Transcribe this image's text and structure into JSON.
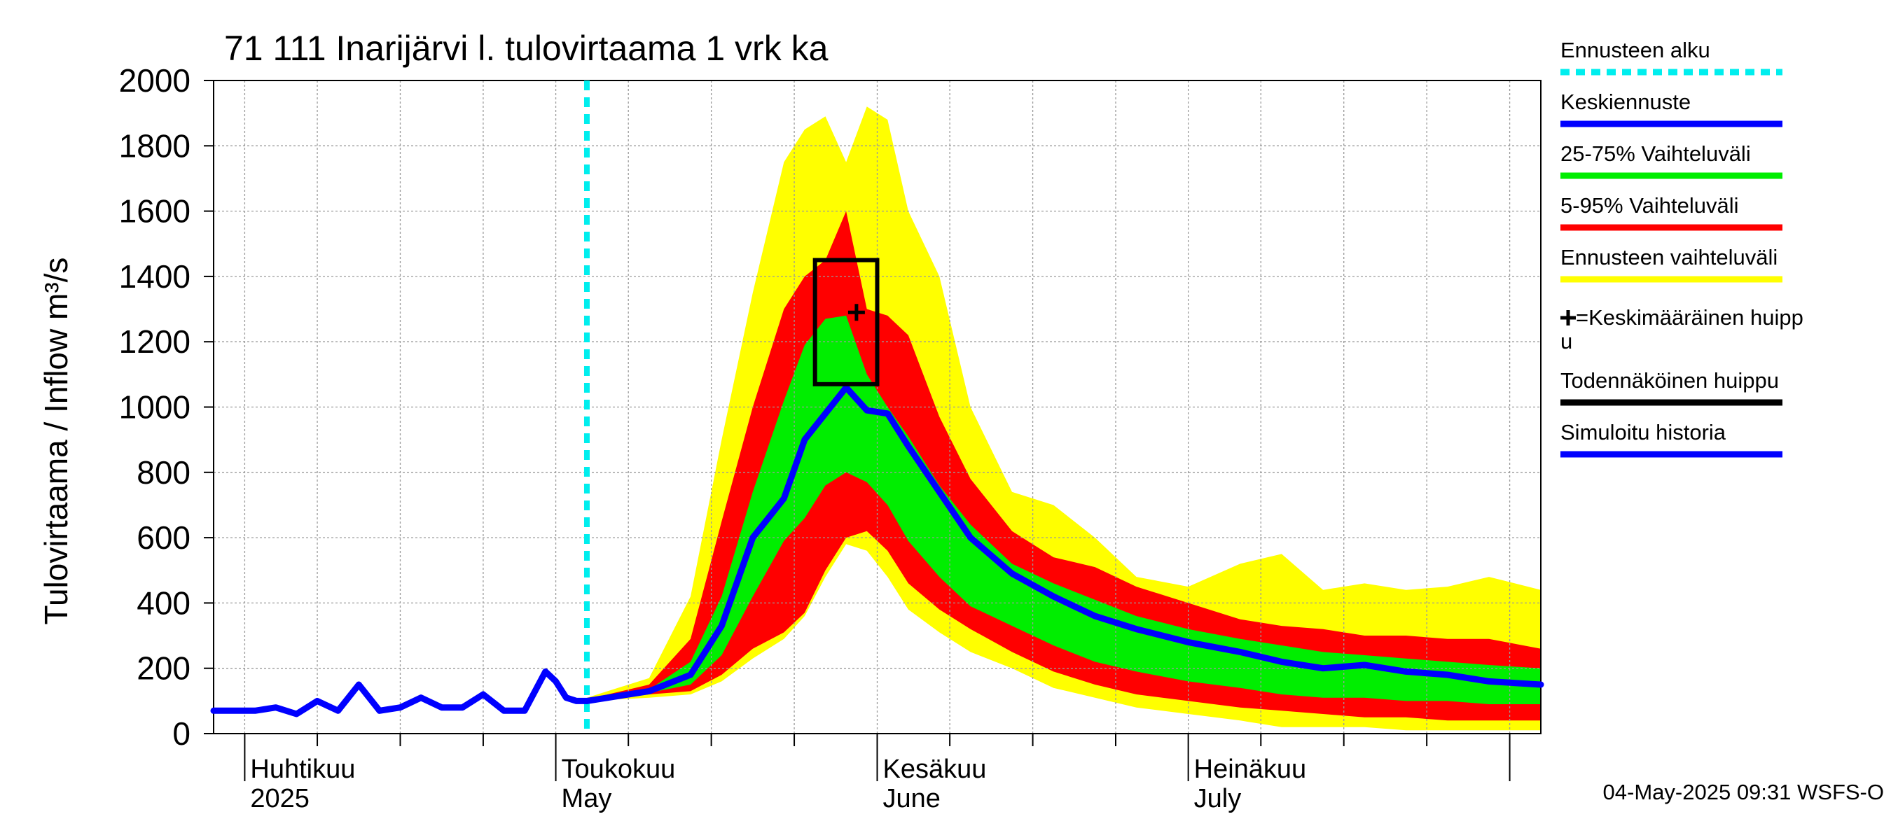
{
  "chart_data": {
    "type": "area",
    "title": "71 111 Inarijärvi l. tulovirtaama 1 vrk ka",
    "ylabel": "Tulovirtaama / Inflow    m³/s",
    "ylim": [
      0,
      2000
    ],
    "yticks": [
      0,
      200,
      400,
      600,
      800,
      1000,
      1200,
      1400,
      1600,
      1800,
      2000
    ],
    "xlim": [
      "2025-03-29",
      "2025-08-04"
    ],
    "month_labels": [
      {
        "date": "2025-04-01",
        "fi": "Huhtikuu",
        "en": "2025"
      },
      {
        "date": "2025-05-01",
        "fi": "Toukokuu",
        "en": "May"
      },
      {
        "date": "2025-06-01",
        "fi": "Kesäkuu",
        "en": "June"
      },
      {
        "date": "2025-07-01",
        "fi": "Heinäkuu",
        "en": "July"
      }
    ],
    "grid": true,
    "forecast_start": "2025-05-04",
    "series": [
      {
        "name": "Ennusteen vaihteluväli",
        "color": "#ffff00",
        "x": [
          "2025-05-04",
          "2025-05-10",
          "2025-05-14",
          "2025-05-17",
          "2025-05-20",
          "2025-05-23",
          "2025-05-25",
          "2025-05-27",
          "2025-05-29",
          "2025-05-31",
          "2025-06-02",
          "2025-06-04",
          "2025-06-07",
          "2025-06-10",
          "2025-06-14",
          "2025-06-18",
          "2025-06-22",
          "2025-06-26",
          "2025-07-01",
          "2025-07-06",
          "2025-07-10",
          "2025-07-14",
          "2025-07-18",
          "2025-07-22",
          "2025-07-26",
          "2025-07-30",
          "2025-08-04"
        ],
        "upper": [
          110,
          170,
          420,
          900,
          1350,
          1750,
          1850,
          1890,
          1750,
          1920,
          1880,
          1600,
          1400,
          1000,
          740,
          700,
          600,
          480,
          450,
          520,
          550,
          440,
          460,
          440,
          450,
          480,
          440
        ],
        "lower": [
          100,
          110,
          120,
          160,
          230,
          290,
          360,
          480,
          580,
          560,
          480,
          380,
          310,
          250,
          200,
          140,
          110,
          80,
          60,
          40,
          20,
          20,
          20,
          10,
          10,
          10,
          10
        ]
      },
      {
        "name": "5-95% Vaihteluväli",
        "color": "#ff0000",
        "x": [
          "2025-05-04",
          "2025-05-10",
          "2025-05-14",
          "2025-05-17",
          "2025-05-20",
          "2025-05-23",
          "2025-05-25",
          "2025-05-27",
          "2025-05-29",
          "2025-05-31",
          "2025-06-02",
          "2025-06-04",
          "2025-06-07",
          "2025-06-10",
          "2025-06-14",
          "2025-06-18",
          "2025-06-22",
          "2025-06-26",
          "2025-07-01",
          "2025-07-06",
          "2025-07-10",
          "2025-07-14",
          "2025-07-18",
          "2025-07-22",
          "2025-07-26",
          "2025-07-30",
          "2025-08-04"
        ],
        "upper": [
          105,
          150,
          290,
          650,
          1000,
          1300,
          1400,
          1450,
          1600,
          1300,
          1280,
          1220,
          970,
          780,
          620,
          540,
          510,
          450,
          400,
          350,
          330,
          320,
          300,
          300,
          290,
          290,
          260
        ],
        "lower": [
          100,
          120,
          130,
          180,
          260,
          310,
          370,
          500,
          600,
          620,
          560,
          460,
          380,
          320,
          250,
          190,
          150,
          120,
          100,
          80,
          70,
          60,
          50,
          50,
          40,
          40,
          40
        ]
      },
      {
        "name": "25-75% Vaihteluväli",
        "color": "#00ee00",
        "x": [
          "2025-05-04",
          "2025-05-10",
          "2025-05-14",
          "2025-05-17",
          "2025-05-20",
          "2025-05-23",
          "2025-05-25",
          "2025-05-27",
          "2025-05-29",
          "2025-05-31",
          "2025-06-02",
          "2025-06-04",
          "2025-06-07",
          "2025-06-10",
          "2025-06-14",
          "2025-06-18",
          "2025-06-22",
          "2025-06-26",
          "2025-07-01",
          "2025-07-06",
          "2025-07-10",
          "2025-07-14",
          "2025-07-18",
          "2025-07-22",
          "2025-07-26",
          "2025-07-30",
          "2025-08-04"
        ],
        "upper": [
          103,
          135,
          220,
          420,
          740,
          1020,
          1190,
          1270,
          1280,
          1100,
          1000,
          910,
          760,
          640,
          520,
          460,
          410,
          360,
          320,
          290,
          270,
          250,
          240,
          230,
          220,
          210,
          200
        ],
        "lower": [
          100,
          125,
          150,
          240,
          420,
          590,
          660,
          760,
          800,
          770,
          700,
          590,
          480,
          390,
          330,
          270,
          220,
          190,
          160,
          140,
          120,
          110,
          110,
          100,
          100,
          90,
          90
        ]
      },
      {
        "name": "Keskiennuste",
        "color": "#0000ff",
        "x": [
          "2025-05-04",
          "2025-05-10",
          "2025-05-14",
          "2025-05-17",
          "2025-05-20",
          "2025-05-23",
          "2025-05-25",
          "2025-05-27",
          "2025-05-29",
          "2025-05-31",
          "2025-06-02",
          "2025-06-04",
          "2025-06-07",
          "2025-06-10",
          "2025-06-14",
          "2025-06-18",
          "2025-06-22",
          "2025-06-26",
          "2025-07-01",
          "2025-07-06",
          "2025-07-10",
          "2025-07-14",
          "2025-07-18",
          "2025-07-22",
          "2025-07-26",
          "2025-07-30",
          "2025-08-04"
        ],
        "values": [
          100,
          130,
          180,
          330,
          600,
          720,
          900,
          980,
          1060,
          990,
          980,
          880,
          740,
          600,
          490,
          420,
          360,
          320,
          280,
          250,
          220,
          200,
          210,
          190,
          180,
          160,
          150
        ]
      },
      {
        "name": "Simuloitu historia",
        "color": "#0000ff",
        "x": [
          "2025-03-29",
          "2025-04-02",
          "2025-04-04",
          "2025-04-06",
          "2025-04-08",
          "2025-04-10",
          "2025-04-12",
          "2025-04-14",
          "2025-04-16",
          "2025-04-18",
          "2025-04-20",
          "2025-04-22",
          "2025-04-24",
          "2025-04-26",
          "2025-04-28",
          "2025-04-30",
          "2025-05-01",
          "2025-05-02",
          "2025-05-03",
          "2025-05-04"
        ],
        "values": [
          70,
          70,
          80,
          60,
          100,
          70,
          150,
          70,
          80,
          110,
          80,
          80,
          120,
          70,
          70,
          190,
          160,
          110,
          100,
          100
        ]
      }
    ],
    "peak_box": {
      "name": "Todennäköinen huippu",
      "x_start": "2025-05-26",
      "x_end": "2025-06-01",
      "y_low": 1070,
      "y_high": 1450
    },
    "mean_peak": {
      "name": "=Keskimääräinen huippu",
      "x": "2025-05-30",
      "y": 1290
    }
  },
  "legend": [
    {
      "label": "Ennusteen alku",
      "color": "#00eeee",
      "style": "dashed"
    },
    {
      "label": "Keskiennuste",
      "color": "#0000ff",
      "style": "solid"
    },
    {
      "label": "25-75% Vaihteluväli",
      "color": "#00ee00",
      "style": "solid"
    },
    {
      "label": "5-95% Vaihteluväli",
      "color": "#ff0000",
      "style": "solid"
    },
    {
      "label": "Ennusteen vaihteluväli",
      "color": "#ffff00",
      "style": "solid"
    },
    {
      "label": "=Keskimääräinen huipp",
      "label2": "u",
      "color": "#000000",
      "style": "plus"
    },
    {
      "label": "Todennäköinen huippu",
      "color": "#000000",
      "style": "solid"
    },
    {
      "label": "Simuloitu historia",
      "color": "#0000ff",
      "style": "solid"
    }
  ],
  "footer": "04-May-2025 09:31 WSFS-O"
}
